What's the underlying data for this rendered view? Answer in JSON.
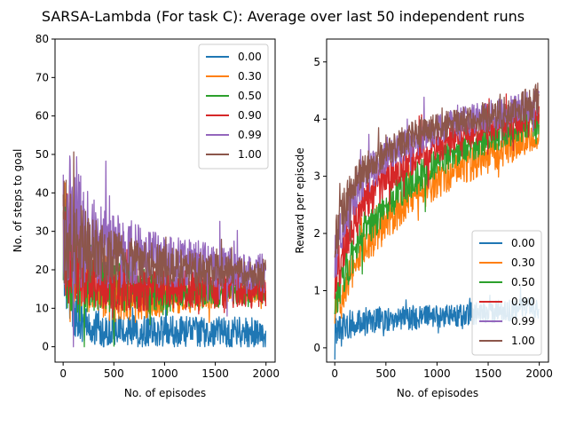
{
  "figure_title": "SARSA-Lambda (For task C): Average over last 50 independent runs",
  "chart_data": [
    {
      "type": "line",
      "xlabel": "No. of episodes",
      "ylabel": "No. of steps to goal",
      "xlim": [
        -80,
        2090
      ],
      "ylim": [
        -4,
        80
      ],
      "xticks": [
        0,
        500,
        1000,
        1500,
        2000
      ],
      "yticks": [
        0,
        10,
        20,
        30,
        40,
        50,
        60,
        70,
        80
      ],
      "grid": false,
      "legend_position": "upper right",
      "series": [
        {
          "name": "0.00",
          "color": "#1f77b4",
          "x": [
            10,
            100,
            250,
            500,
            750,
            1000,
            1250,
            1500,
            1750,
            2000
          ],
          "values": [
            30,
            8,
            5,
            4.5,
            4,
            4,
            4,
            3.8,
            3.7,
            3.5
          ],
          "noise": [
            18,
            6,
            5,
            4,
            4,
            4,
            4,
            4,
            4,
            4
          ]
        },
        {
          "name": "0.30",
          "color": "#ff7f0e",
          "x": [
            10,
            100,
            250,
            500,
            750,
            1000,
            1250,
            1500,
            1750,
            2000
          ],
          "values": [
            30,
            25,
            18,
            14,
            12,
            12,
            12,
            13,
            14,
            14.5
          ],
          "noise": [
            18,
            14,
            10,
            8,
            5,
            4,
            3,
            3,
            3,
            3
          ]
        },
        {
          "name": "0.50",
          "color": "#2ca02c",
          "x": [
            10,
            100,
            250,
            500,
            750,
            1000,
            1250,
            1500,
            1750,
            2000
          ],
          "values": [
            25,
            20,
            18,
            16,
            15,
            14,
            14,
            14,
            14,
            14
          ],
          "noise": [
            15,
            12,
            9,
            7,
            6,
            5,
            4,
            4,
            3,
            3
          ]
        },
        {
          "name": "0.90",
          "color": "#d62728",
          "x": [
            10,
            100,
            250,
            500,
            750,
            1000,
            1250,
            1500,
            1750,
            2000
          ],
          "values": [
            30,
            22,
            18,
            16,
            15,
            15,
            15,
            15,
            15,
            15
          ],
          "noise": [
            18,
            12,
            8,
            7,
            6,
            5,
            5,
            5,
            5,
            5
          ]
        },
        {
          "name": "0.99",
          "color": "#9467bd",
          "x": [
            10,
            100,
            250,
            500,
            750,
            1000,
            1250,
            1500,
            1750,
            2000
          ],
          "values": [
            35,
            32,
            28,
            25,
            24,
            22,
            22,
            21,
            20,
            19
          ],
          "noise": [
            25,
            18,
            12,
            10,
            8,
            7,
            6,
            6,
            5,
            5
          ]
        },
        {
          "name": "1.00",
          "color": "#8c564b",
          "x": [
            10,
            100,
            250,
            500,
            750,
            1000,
            1250,
            1500,
            1750,
            2000
          ],
          "values": [
            32,
            28,
            25,
            23,
            22,
            21,
            20,
            20,
            19,
            19
          ],
          "noise": [
            18,
            12,
            9,
            7,
            6,
            5,
            5,
            4,
            4,
            4
          ]
        }
      ]
    },
    {
      "type": "line",
      "xlabel": "No. of episodes",
      "ylabel": "Reward per episode",
      "xlim": [
        -80,
        2090
      ],
      "ylim": [
        -0.25,
        5.4
      ],
      "xticks": [
        0,
        500,
        1000,
        1500,
        2000
      ],
      "yticks": [
        0,
        1,
        2,
        3,
        4,
        5
      ],
      "grid": false,
      "legend_position": "lower right",
      "series": [
        {
          "name": "0.00",
          "color": "#1f77b4",
          "x": [
            10,
            100,
            250,
            500,
            750,
            1000,
            1250,
            1500,
            1750,
            2000
          ],
          "values": [
            0.35,
            0.4,
            0.45,
            0.5,
            0.52,
            0.55,
            0.58,
            0.62,
            0.66,
            0.7
          ],
          "noise": [
            0.3,
            0.25,
            0.25,
            0.22,
            0.22,
            0.2,
            0.2,
            0.2,
            0.2,
            0.2
          ]
        },
        {
          "name": "0.30",
          "color": "#ff7f0e",
          "x": [
            10,
            100,
            250,
            500,
            750,
            1000,
            1250,
            1500,
            1750,
            2000
          ],
          "values": [
            0.7,
            1.1,
            1.7,
            2.2,
            2.6,
            2.9,
            3.15,
            3.35,
            3.55,
            3.75
          ],
          "noise": [
            0.3,
            0.35,
            0.35,
            0.35,
            0.3,
            0.3,
            0.3,
            0.3,
            0.28,
            0.28
          ]
        },
        {
          "name": "0.50",
          "color": "#2ca02c",
          "x": [
            10,
            100,
            250,
            500,
            750,
            1000,
            1250,
            1500,
            1750,
            2000
          ],
          "values": [
            0.9,
            1.3,
            1.9,
            2.5,
            2.9,
            3.2,
            3.45,
            3.65,
            3.8,
            3.95
          ],
          "noise": [
            0.35,
            0.35,
            0.35,
            0.3,
            0.3,
            0.28,
            0.26,
            0.26,
            0.25,
            0.25
          ]
        },
        {
          "name": "0.90",
          "color": "#d62728",
          "x": [
            10,
            100,
            250,
            500,
            750,
            1000,
            1250,
            1500,
            1750,
            2000
          ],
          "values": [
            1.2,
            1.8,
            2.4,
            2.95,
            3.3,
            3.5,
            3.7,
            3.85,
            3.95,
            4.05
          ],
          "noise": [
            0.4,
            0.4,
            0.35,
            0.3,
            0.28,
            0.26,
            0.25,
            0.25,
            0.25,
            0.25
          ]
        },
        {
          "name": "0.99",
          "color": "#9467bd",
          "x": [
            10,
            100,
            250,
            500,
            750,
            1000,
            1250,
            1500,
            1750,
            2000
          ],
          "values": [
            1.6,
            2.3,
            2.9,
            3.35,
            3.6,
            3.8,
            3.95,
            4.05,
            4.15,
            4.3
          ],
          "noise": [
            0.45,
            0.4,
            0.35,
            0.3,
            0.28,
            0.27,
            0.27,
            0.27,
            0.27,
            0.3
          ]
        },
        {
          "name": "1.00",
          "color": "#8c564b",
          "x": [
            10,
            100,
            250,
            500,
            750,
            1000,
            1250,
            1500,
            1750,
            2000
          ],
          "values": [
            1.9,
            2.5,
            3.05,
            3.45,
            3.7,
            3.85,
            3.95,
            4.05,
            4.15,
            4.35
          ],
          "noise": [
            0.4,
            0.35,
            0.3,
            0.28,
            0.26,
            0.25,
            0.25,
            0.25,
            0.28,
            0.32
          ]
        }
      ]
    }
  ]
}
